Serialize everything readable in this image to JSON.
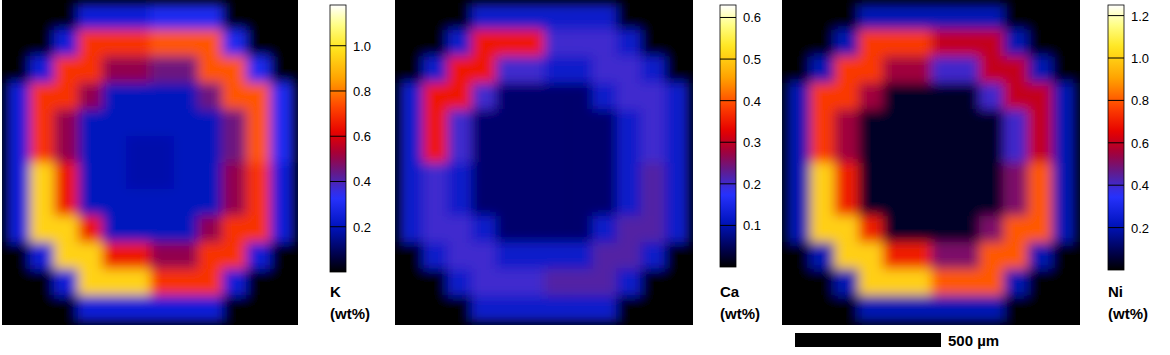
{
  "chart_data": [
    {
      "type": "heatmap",
      "colorbar": {
        "label": "K",
        "unit": "(wt%)",
        "range": [
          0,
          1.18
        ],
        "ticks": [
          0.2,
          0.4,
          0.6,
          0.8,
          {
            "value": 1,
            "label": "1.0"
          }
        ]
      },
      "cells": [
        [
          0,
          0,
          0,
          0.25,
          0.25,
          0.25,
          0.3,
          0.3,
          0.3,
          0,
          0,
          0
        ],
        [
          0,
          0,
          0.25,
          0.7,
          0.7,
          0.7,
          0.75,
          0.75,
          0.75,
          0.3,
          0,
          0
        ],
        [
          0,
          0.25,
          0.7,
          0.7,
          0.5,
          0.5,
          0.45,
          0.45,
          0.75,
          0.75,
          0.3,
          0
        ],
        [
          0.25,
          0.7,
          0.7,
          0.5,
          0.2,
          0.2,
          0.2,
          0.2,
          0.45,
          0.75,
          0.75,
          0.3
        ],
        [
          0.25,
          0.7,
          0.5,
          0.2,
          0.2,
          0.2,
          0.2,
          0.2,
          0.2,
          0.45,
          0.75,
          0.3
        ],
        [
          0.25,
          0.7,
          0.5,
          0.2,
          0.2,
          0.18,
          0.18,
          0.2,
          0.2,
          0.45,
          0.75,
          0.3
        ],
        [
          0.25,
          0.95,
          0.65,
          0.2,
          0.2,
          0.18,
          0.18,
          0.2,
          0.2,
          0.5,
          0.7,
          0.25
        ],
        [
          0.25,
          0.95,
          0.65,
          0.2,
          0.2,
          0.2,
          0.2,
          0.2,
          0.2,
          0.5,
          0.7,
          0.25
        ],
        [
          0.25,
          0.95,
          0.95,
          0.65,
          0.2,
          0.2,
          0.2,
          0.2,
          0.5,
          0.7,
          0.7,
          0.25
        ],
        [
          0,
          0.25,
          0.95,
          0.95,
          0.65,
          0.65,
          0.5,
          0.5,
          0.7,
          0.7,
          0.25,
          0
        ],
        [
          0,
          0,
          0.25,
          0.95,
          0.95,
          0.95,
          0.7,
          0.7,
          0.7,
          0.25,
          0,
          0
        ],
        [
          0,
          0,
          0,
          0.25,
          0.25,
          0.25,
          0.25,
          0.25,
          0.25,
          0,
          0,
          0
        ]
      ]
    },
    {
      "type": "heatmap",
      "colorbar": {
        "label": "Ca",
        "unit": "(wt%)",
        "range": [
          0,
          0.63
        ],
        "ticks": [
          0.1,
          0.2,
          0.3,
          0.4,
          0.5,
          0.6
        ]
      },
      "cells": [
        [
          0,
          0,
          0,
          0.12,
          0.12,
          0.12,
          0.12,
          0.12,
          0.12,
          0,
          0,
          0
        ],
        [
          0,
          0,
          0.12,
          0.35,
          0.35,
          0.35,
          0.2,
          0.2,
          0.2,
          0.12,
          0,
          0
        ],
        [
          0,
          0.12,
          0.35,
          0.35,
          0.2,
          0.2,
          0.12,
          0.12,
          0.2,
          0.2,
          0.12,
          0
        ],
        [
          0.12,
          0.35,
          0.35,
          0.2,
          0.06,
          0.06,
          0.06,
          0.06,
          0.12,
          0.2,
          0.2,
          0.12
        ],
        [
          0.12,
          0.35,
          0.2,
          0.06,
          0.06,
          0.06,
          0.06,
          0.06,
          0.06,
          0.12,
          0.2,
          0.12
        ],
        [
          0.12,
          0.35,
          0.2,
          0.06,
          0.06,
          0.06,
          0.06,
          0.06,
          0.06,
          0.12,
          0.2,
          0.12
        ],
        [
          0.12,
          0.2,
          0.12,
          0.06,
          0.06,
          0.06,
          0.06,
          0.06,
          0.06,
          0.12,
          0.22,
          0.12
        ],
        [
          0.12,
          0.2,
          0.12,
          0.06,
          0.06,
          0.06,
          0.06,
          0.06,
          0.06,
          0.12,
          0.22,
          0.12
        ],
        [
          0.12,
          0.2,
          0.2,
          0.12,
          0.06,
          0.06,
          0.06,
          0.06,
          0.12,
          0.22,
          0.22,
          0.12
        ],
        [
          0,
          0.12,
          0.2,
          0.2,
          0.12,
          0.12,
          0.12,
          0.12,
          0.22,
          0.22,
          0.12,
          0
        ],
        [
          0,
          0,
          0.12,
          0.2,
          0.2,
          0.2,
          0.22,
          0.22,
          0.22,
          0.12,
          0,
          0
        ],
        [
          0,
          0,
          0,
          0.12,
          0.12,
          0.12,
          0.12,
          0.12,
          0.12,
          0,
          0,
          0
        ]
      ]
    },
    {
      "type": "heatmap",
      "colorbar": {
        "label": "Ni",
        "unit": "(wt%)",
        "range": [
          0,
          1.25
        ],
        "ticks": [
          0.2,
          0.4,
          0.6,
          0.8,
          {
            "value": 1,
            "label": "1.0"
          },
          1.2
        ]
      },
      "cells": [
        [
          0,
          0,
          0,
          0.2,
          0.2,
          0.2,
          0.2,
          0.2,
          0.2,
          0,
          0,
          0
        ],
        [
          0,
          0,
          0.2,
          0.75,
          0.75,
          0.75,
          0.6,
          0.6,
          0.6,
          0.2,
          0,
          0
        ],
        [
          0,
          0.2,
          0.75,
          0.75,
          0.55,
          0.55,
          0.4,
          0.4,
          0.6,
          0.6,
          0.2,
          0
        ],
        [
          0.2,
          0.75,
          0.75,
          0.55,
          0.04,
          0.04,
          0.04,
          0.04,
          0.4,
          0.6,
          0.6,
          0.2
        ],
        [
          0.2,
          0.75,
          0.55,
          0.04,
          0.04,
          0.04,
          0.04,
          0.04,
          0.04,
          0.4,
          0.6,
          0.2
        ],
        [
          0.2,
          0.75,
          0.55,
          0.04,
          0.04,
          0.04,
          0.04,
          0.04,
          0.04,
          0.4,
          0.6,
          0.2
        ],
        [
          0.2,
          1.0,
          0.7,
          0.04,
          0.04,
          0.04,
          0.04,
          0.04,
          0.04,
          0.5,
          0.8,
          0.2
        ],
        [
          0.2,
          1.0,
          0.7,
          0.04,
          0.04,
          0.04,
          0.04,
          0.04,
          0.04,
          0.5,
          0.8,
          0.2
        ],
        [
          0.2,
          1.0,
          1.0,
          0.7,
          0.04,
          0.04,
          0.04,
          0.04,
          0.5,
          0.8,
          0.8,
          0.2
        ],
        [
          0,
          0.2,
          1.0,
          1.0,
          0.7,
          0.7,
          0.5,
          0.5,
          0.8,
          0.8,
          0.2,
          0
        ],
        [
          0,
          0,
          0.2,
          1.0,
          1.0,
          1.0,
          0.8,
          0.8,
          0.8,
          0.2,
          0,
          0
        ],
        [
          0,
          0,
          0,
          0.2,
          0.2,
          0.2,
          0.2,
          0.2,
          0.2,
          0,
          0,
          0
        ]
      ]
    }
  ],
  "scale_bar": {
    "label": "500 µm"
  }
}
